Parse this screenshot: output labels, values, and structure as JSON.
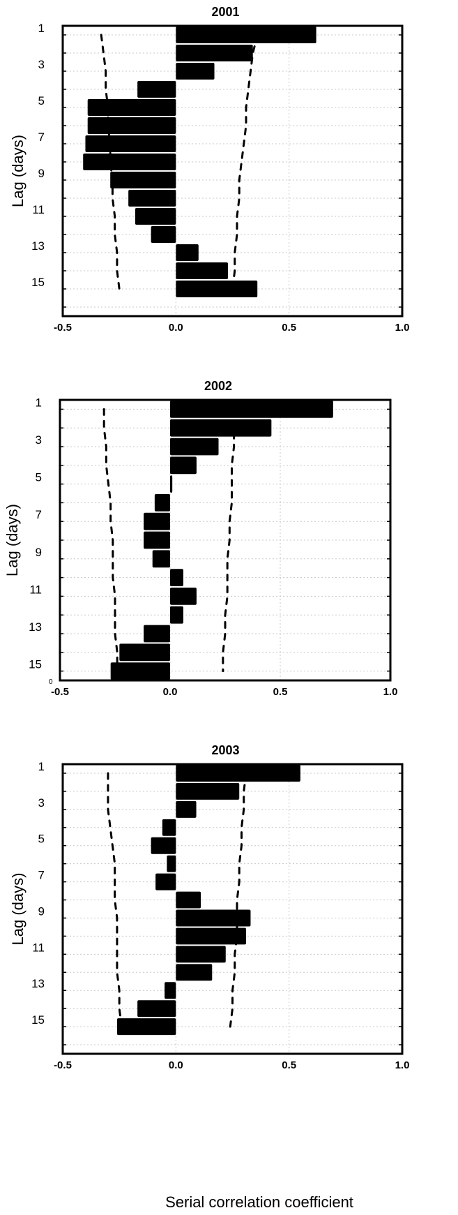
{
  "figure": {
    "xlabel": "Serial correlation coefficient"
  },
  "chart_data": [
    {
      "type": "bar",
      "orientation": "horizontal",
      "title": "2001",
      "ylabel": "Lag (days)",
      "xlabel": "",
      "xlim": [
        -0.5,
        1.0
      ],
      "x_ticks": [
        "-0.5",
        "0.0",
        "0.5",
        "1.0"
      ],
      "y_tick_labels": [
        "1",
        "3",
        "5",
        "7",
        "9",
        "11",
        "13",
        "15"
      ],
      "grid": true,
      "lags": [
        1,
        2,
        3,
        4,
        5,
        6,
        7,
        8,
        9,
        10,
        11,
        12,
        13,
        14,
        15,
        16
      ],
      "values": [
        0.62,
        0.34,
        0.17,
        -0.17,
        -0.39,
        -0.39,
        -0.4,
        -0.41,
        -0.29,
        -0.21,
        -0.18,
        -0.11,
        0.1,
        0.23,
        0.36,
        0.0
      ],
      "confidence_upper": [
        0.36,
        0.34,
        0.33,
        0.32,
        0.31,
        0.31,
        0.3,
        0.29,
        0.28,
        0.28,
        0.27,
        0.27,
        0.26,
        0.26,
        0.25,
        0.0
      ],
      "confidence_lower": [
        -0.33,
        -0.32,
        -0.31,
        -0.31,
        -0.3,
        -0.3,
        -0.29,
        -0.29,
        -0.28,
        -0.28,
        -0.27,
        -0.27,
        -0.26,
        -0.26,
        -0.25,
        0.0
      ]
    },
    {
      "type": "bar",
      "orientation": "horizontal",
      "title": "2002",
      "ylabel": "Lag (days)",
      "xlabel": "",
      "xlim": [
        -0.5,
        1.0
      ],
      "x_ticks": [
        "-0.5",
        "0.0",
        "0.5",
        "1.0"
      ],
      "y_tick_labels": [
        "1",
        "3",
        "5",
        "7",
        "9",
        "11",
        "13",
        "15"
      ],
      "corner_label": "0",
      "grid": true,
      "lags": [
        1,
        2,
        3,
        4,
        5,
        6,
        7,
        8,
        9,
        10,
        11,
        12,
        13,
        14,
        15
      ],
      "values": [
        0.74,
        0.46,
        0.22,
        0.12,
        0.01,
        -0.07,
        -0.12,
        -0.12,
        -0.08,
        0.06,
        0.12,
        0.06,
        -0.12,
        -0.23,
        -0.27
      ],
      "confidence_upper": [
        0.3,
        0.29,
        0.29,
        0.28,
        0.28,
        0.28,
        0.27,
        0.27,
        0.26,
        0.26,
        0.26,
        0.25,
        0.25,
        0.24,
        0.24
      ],
      "confidence_lower": [
        -0.3,
        -0.3,
        -0.29,
        -0.29,
        -0.28,
        -0.27,
        -0.27,
        -0.26,
        -0.26,
        -0.26,
        -0.25,
        -0.25,
        -0.25,
        -0.24,
        -0.24
      ]
    },
    {
      "type": "bar",
      "orientation": "horizontal",
      "title": "2003",
      "ylabel": "Lag (days)",
      "xlabel": "Serial correlation coefficient",
      "xlim": [
        -0.5,
        1.0
      ],
      "x_ticks": [
        "-0.5",
        "0.0",
        "0.5",
        "1.0"
      ],
      "y_tick_labels": [
        "1",
        "3",
        "5",
        "7",
        "9",
        "11",
        "13",
        "15"
      ],
      "grid": true,
      "lags": [
        1,
        2,
        3,
        4,
        5,
        6,
        7,
        8,
        9,
        10,
        11,
        12,
        13,
        14,
        15,
        16
      ],
      "values": [
        0.55,
        0.28,
        0.09,
        -0.06,
        -0.11,
        -0.04,
        -0.09,
        0.11,
        0.33,
        0.31,
        0.22,
        0.16,
        -0.05,
        -0.17,
        -0.26,
        0.0
      ],
      "confidence_upper": [
        0.31,
        0.3,
        0.3,
        0.29,
        0.29,
        0.28,
        0.28,
        0.27,
        0.27,
        0.27,
        0.26,
        0.26,
        0.25,
        0.25,
        0.24,
        0.0
      ],
      "confidence_lower": [
        -0.3,
        -0.3,
        -0.3,
        -0.29,
        -0.28,
        -0.27,
        -0.27,
        -0.27,
        -0.26,
        -0.26,
        -0.26,
        -0.26,
        -0.25,
        -0.25,
        -0.24,
        0.0
      ]
    }
  ]
}
